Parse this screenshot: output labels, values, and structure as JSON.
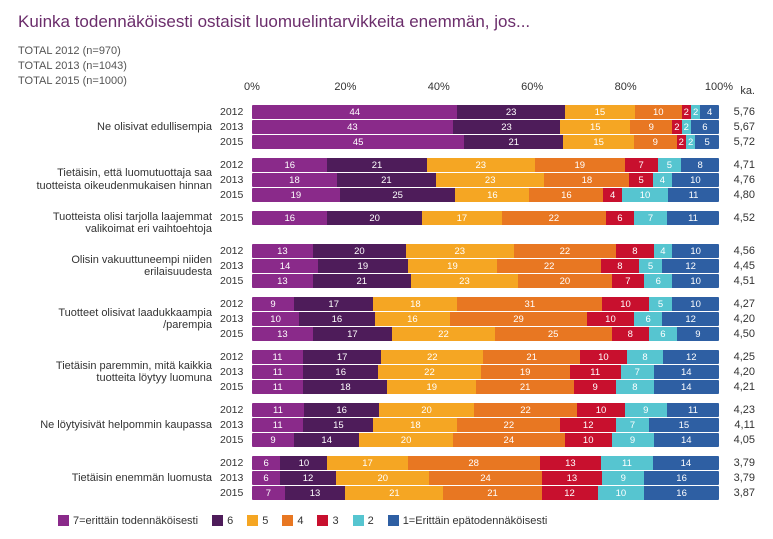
{
  "title": "Kuinka todennäköisesti ostaisit luomuelintarvikkeita enemmän, jos...",
  "meta_lines": [
    "TOTAL 2012 (n=970)",
    "TOTAL 2013 (n=1043)",
    "TOTAL 2015 (n=1000)"
  ],
  "axis": {
    "ticks": [
      "0%",
      "20%",
      "40%",
      "60%",
      "80%",
      "100%"
    ],
    "ka_header": "ka."
  },
  "colors": {
    "c7": "#8a2a8a",
    "c6": "#4e1c5a",
    "c5": "#f5a623",
    "c4": "#e87722",
    "c3": "#c8102e",
    "c2": "#56c5d0",
    "c1": "#2e5fa3",
    "title": "#6b2d6b"
  },
  "legend": [
    {
      "key": "c7",
      "label": "7=erittäin todennäköisesti"
    },
    {
      "key": "c6",
      "label": "6"
    },
    {
      "key": "c5",
      "label": "5"
    },
    {
      "key": "c4",
      "label": "4"
    },
    {
      "key": "c3",
      "label": "3"
    },
    {
      "key": "c2",
      "label": "2"
    },
    {
      "key": "c1",
      "label": "1=Erittäin epätodennäköisesti"
    }
  ],
  "groups": [
    {
      "label": "Ne olisivat edullisempia",
      "rows": [
        {
          "year": "2012",
          "ka": "5,76",
          "seg": [
            44,
            23,
            15,
            10,
            2,
            2,
            4
          ]
        },
        {
          "year": "2013",
          "ka": "5,67",
          "seg": [
            43,
            23,
            15,
            9,
            2,
            2,
            6
          ]
        },
        {
          "year": "2015",
          "ka": "5,72",
          "seg": [
            45,
            21,
            15,
            9,
            2,
            2,
            5
          ]
        }
      ]
    },
    {
      "label": "Tietäisin, että luomutuottaja saa tuotteista oikeudenmukaisen hinnan",
      "rows": [
        {
          "year": "2012",
          "ka": "4,71",
          "seg": [
            16,
            21,
            23,
            19,
            7,
            5,
            8
          ]
        },
        {
          "year": "2013",
          "ka": "4,76",
          "seg": [
            18,
            21,
            23,
            18,
            5,
            4,
            10
          ]
        },
        {
          "year": "2015",
          "ka": "4,80",
          "seg": [
            19,
            25,
            16,
            16,
            4,
            10,
            11
          ]
        }
      ]
    },
    {
      "label": "Tuotteista olisi tarjolla laajemmat valikoimat eri vaihtoehtoja",
      "rows": [
        {
          "year": "2015",
          "ka": "4,52",
          "seg": [
            16,
            20,
            17,
            22,
            6,
            7,
            11
          ]
        }
      ]
    },
    {
      "label": "Olisin vakuuttuneempi niiden erilaisuudesta",
      "rows": [
        {
          "year": "2012",
          "ka": "4,56",
          "seg": [
            13,
            20,
            23,
            22,
            8,
            4,
            10
          ]
        },
        {
          "year": "2013",
          "ka": "4,45",
          "seg": [
            14,
            19,
            19,
            22,
            8,
            5,
            12
          ]
        },
        {
          "year": "2015",
          "ka": "4,51",
          "seg": [
            13,
            21,
            23,
            20,
            7,
            6,
            10
          ]
        }
      ]
    },
    {
      "label": "Tuotteet olisivat laadukkaampia /parempia",
      "rows": [
        {
          "year": "2012",
          "ka": "4,27",
          "seg": [
            9,
            17,
            18,
            31,
            10,
            5,
            10
          ]
        },
        {
          "year": "2013",
          "ka": "4,20",
          "seg": [
            10,
            16,
            16,
            29,
            10,
            6,
            12
          ]
        },
        {
          "year": "2015",
          "ka": "4,50",
          "seg": [
            13,
            17,
            22,
            25,
            8,
            6,
            9
          ]
        }
      ]
    },
    {
      "label": "Tietäisin paremmin, mitä kaikkia tuotteita löytyy luomuna",
      "rows": [
        {
          "year": "2012",
          "ka": "4,25",
          "seg": [
            11,
            17,
            22,
            21,
            10,
            8,
            12
          ]
        },
        {
          "year": "2013",
          "ka": "4,20",
          "seg": [
            11,
            16,
            22,
            19,
            11,
            7,
            14
          ]
        },
        {
          "year": "2015",
          "ka": "4,21",
          "seg": [
            11,
            18,
            19,
            21,
            9,
            8,
            14
          ]
        }
      ]
    },
    {
      "label": "Ne löytyisivät helpommin kaupassa",
      "rows": [
        {
          "year": "2012",
          "ka": "4,23",
          "seg": [
            11,
            16,
            20,
            22,
            10,
            9,
            11
          ]
        },
        {
          "year": "2013",
          "ka": "4,11",
          "seg": [
            11,
            15,
            18,
            22,
            12,
            7,
            15
          ]
        },
        {
          "year": "2015",
          "ka": "4,05",
          "seg": [
            9,
            14,
            20,
            24,
            10,
            9,
            14
          ]
        }
      ]
    },
    {
      "label": "Tietäisin enemmän luomusta",
      "rows": [
        {
          "year": "2012",
          "ka": "3,79",
          "seg": [
            6,
            10,
            17,
            28,
            13,
            11,
            14
          ]
        },
        {
          "year": "2013",
          "ka": "3,79",
          "seg": [
            6,
            12,
            20,
            24,
            13,
            9,
            16
          ]
        },
        {
          "year": "2015",
          "ka": "3,87",
          "seg": [
            7,
            13,
            21,
            21,
            12,
            10,
            16
          ]
        }
      ]
    }
  ]
}
